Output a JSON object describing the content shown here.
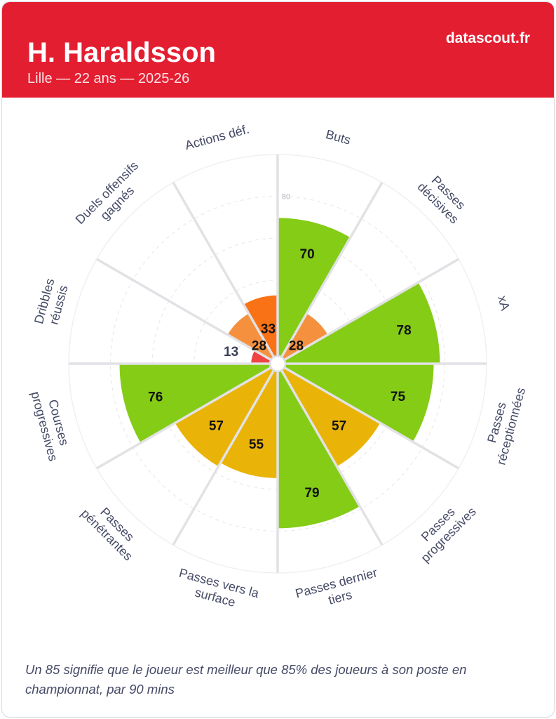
{
  "header": {
    "title": "H. Haraldsson",
    "subtitle": "Lille — 22 ans — 2025-26",
    "brand": "datascout.fr"
  },
  "note": "Un 85 signifie que le joueur est meilleur que 85% des joueurs à son poste en championnat, par 90 mins",
  "colors": {
    "header": "#e41e31",
    "green": "#84cc16",
    "yellow": "#eab308",
    "orange_light": "#f5913e",
    "orange": "#f97316",
    "red": "#ef4444",
    "label": "#454a66",
    "divider": "#e2e2e6"
  },
  "chart_data": {
    "type": "polar-bar",
    "range": [
      0,
      100
    ],
    "gridlines": [
      20,
      40,
      60,
      80
    ],
    "tick_labels": [
      "80"
    ],
    "categories": [
      {
        "label": [
          "Buts"
        ],
        "value": 70,
        "color": "green"
      },
      {
        "label": [
          "Passes",
          "décisives"
        ],
        "value": 28,
        "color": "orange_light"
      },
      {
        "label": [
          "xA"
        ],
        "value": 78,
        "color": "green"
      },
      {
        "label": [
          "Passes",
          "réceptionnées"
        ],
        "value": 75,
        "color": "green"
      },
      {
        "label": [
          "Passes",
          "progressives"
        ],
        "value": 57,
        "color": "yellow"
      },
      {
        "label": [
          "Passes dernier",
          "tiers"
        ],
        "value": 79,
        "color": "green"
      },
      {
        "label": [
          "Passes vers la",
          "surface"
        ],
        "value": 55,
        "color": "yellow"
      },
      {
        "label": [
          "Passes",
          "pénétrantes"
        ],
        "value": 57,
        "color": "yellow"
      },
      {
        "label": [
          "Courses",
          "progressives"
        ],
        "value": 76,
        "color": "green"
      },
      {
        "label": [
          "Dribbles",
          "réussis"
        ],
        "value": 13,
        "color": "red"
      },
      {
        "label": [
          "Duels offensifs",
          "gagnés"
        ],
        "value": 28,
        "color": "orange_light"
      },
      {
        "label": [
          "Actions déf."
        ],
        "value": 33,
        "color": "orange"
      }
    ]
  }
}
